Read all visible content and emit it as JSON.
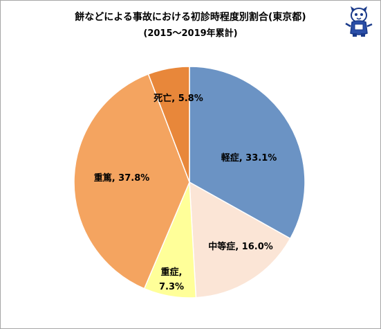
{
  "title_line1": "餅などによる事故における初診時程度別割合(東京都)",
  "title_line2": "(2015～2019年累計)",
  "chart_data": {
    "type": "pie",
    "title": "餅などによる事故における初診時程度別割合(東京都)",
    "subtitle": "(2015～2019年累計)",
    "start_angle_deg": 0,
    "direction": "clockwise",
    "slices": [
      {
        "label": "軽症",
        "value": 33.1,
        "display": "軽症, 33.1%",
        "color": "#6b93c4"
      },
      {
        "label": "中等症",
        "value": 16.0,
        "display": "中等症, 16.0%",
        "color": "#fbe5d6"
      },
      {
        "label": "重症",
        "value": 7.3,
        "display_line1": "重症,",
        "display_line2": "7.3%",
        "color": "#ffff99"
      },
      {
        "label": "重篤",
        "value": 37.8,
        "display": "重篤, 37.8%",
        "color": "#f4a460"
      },
      {
        "label": "死亡",
        "value": 5.8,
        "display": "死亡, 5.8%",
        "color": "#e8873a"
      }
    ]
  },
  "colors": {
    "slice_border": "#ffffff",
    "frame": "#a6a6a6"
  }
}
